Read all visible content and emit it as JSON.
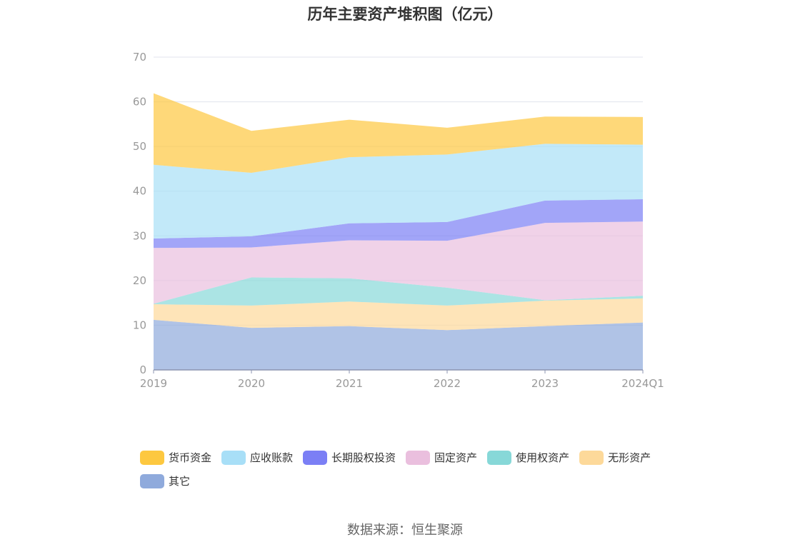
{
  "title": "历年主要资产堆积图（亿元）",
  "source": "数据来源：恒生聚源",
  "chart_data": {
    "type": "area",
    "stacked": true,
    "categories": [
      "2019",
      "2020",
      "2021",
      "2022",
      "2023",
      "2024Q1"
    ],
    "ylim": [
      0,
      70
    ],
    "yticks": [
      0,
      10,
      20,
      30,
      40,
      50,
      60,
      70
    ],
    "grid": true,
    "legend_position": "bottom",
    "series": [
      {
        "name": "其它",
        "color": "#8faadc",
        "values": [
          11.2,
          9.4,
          9.8,
          8.9,
          9.8,
          10.6
        ]
      },
      {
        "name": "无形资产",
        "color": "#fdd99a",
        "values": [
          3.5,
          5.0,
          5.5,
          5.5,
          5.7,
          5.4
        ]
      },
      {
        "name": "使用权资产",
        "color": "#87d8d8",
        "values": [
          0.1,
          6.3,
          5.2,
          4.0,
          0.1,
          0.6
        ]
      },
      {
        "name": "固定资产",
        "color": "#eabfde",
        "values": [
          12.5,
          6.7,
          8.5,
          10.5,
          17.3,
          16.6
        ]
      },
      {
        "name": "长期股权投资",
        "color": "#7b7ff5",
        "values": [
          2.1,
          2.5,
          3.8,
          4.2,
          5.0,
          5.0
        ]
      },
      {
        "name": "应收账款",
        "color": "#a8dff7",
        "values": [
          16.5,
          14.2,
          14.8,
          15.1,
          12.7,
          12.2
        ]
      },
      {
        "name": "货币资金",
        "color": "#fdc840",
        "values": [
          16.0,
          9.4,
          8.4,
          6.0,
          6.1,
          6.2
        ]
      }
    ]
  }
}
